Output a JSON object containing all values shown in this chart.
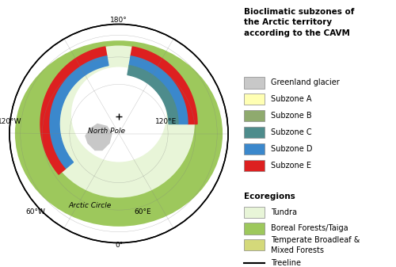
{
  "figsize": [
    5.0,
    3.37
  ],
  "dpi": 100,
  "background_color": "#ffffff",
  "ocean_color": "#ffffff",
  "boreal_forest_color": "#9dc85c",
  "tundra_color": "#e8f5d8",
  "temperate_broadleaf_color": "#d4d97a",
  "greenland_glacier_color": "#c8c8c8",
  "subzone_a_color": "#ffffb3",
  "subzone_b_color": "#8faa6e",
  "subzone_c_color": "#4e8c8c",
  "subzone_d_color": "#3b88cc",
  "subzone_e_color": "#dd2020",
  "map_border_color": "#aaaaaa",
  "legend_title": "Bioclimatic subzones of\nthe Arctic territory\naccording to the CAVM",
  "legend_title_fontsize": 7.5,
  "legend_fontsize": 7.0,
  "ecoregions_title": "Ecoregions",
  "cavm_items": [
    {
      "label": "Greenland glacier",
      "color": "#c8c8c8"
    },
    {
      "label": "Subzone A",
      "color": "#ffffb3"
    },
    {
      "label": "Subzone B",
      "color": "#8faa6e"
    },
    {
      "label": "Subzone C",
      "color": "#4e8c8c"
    },
    {
      "label": "Subzone D",
      "color": "#3b88cc"
    },
    {
      "label": "Subzone E",
      "color": "#dd2020"
    }
  ],
  "eco_items": [
    {
      "label": "Tundra",
      "color": "#e8f5d8"
    },
    {
      "label": "Boreal Forests/Taiga",
      "color": "#9dc85c"
    },
    {
      "label": "Temperate Broadleaf &\nMixed Forests",
      "color": "#d4d97a"
    }
  ],
  "treeline_label": "Treeline"
}
